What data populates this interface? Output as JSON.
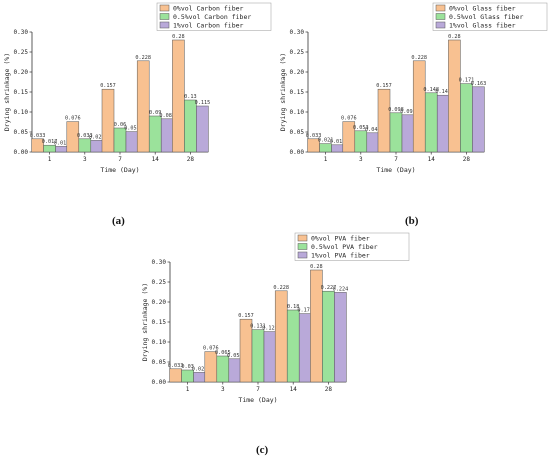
{
  "captions": [
    "(a)",
    "(b)",
    "(c)"
  ],
  "colors": [
    "#f8c191",
    "#9be29b",
    "#b9a9d9"
  ],
  "chart_data": [
    {
      "type": "bar",
      "categories": [
        "1",
        "3",
        "7",
        "14",
        "28"
      ],
      "series": [
        {
          "name": "0%vol Carbon fiber",
          "values": [
            0.033,
            0.076,
            0.157,
            0.228,
            0.28
          ],
          "labels": [
            "0.033",
            "0.076",
            "0.157",
            "0.228",
            "0.28"
          ]
        },
        {
          "name": "0.5%vol Carbon fiber",
          "values": [
            0.017,
            0.033,
            0.06,
            0.09,
            0.13
          ],
          "labels": [
            "0.017",
            "0.033",
            "0.06",
            "0.09",
            "0.13"
          ]
        },
        {
          "name": "1%vol Carbon fiber",
          "values": [
            0.014,
            0.029,
            0.051,
            0.083,
            0.115
          ],
          "labels": [
            "0.014",
            "0.029",
            "0.051",
            "0.083",
            "0.115"
          ]
        }
      ],
      "xlabel": "Time (Day)",
      "ylabel": "Drying shrinkage (%)",
      "ylim": [
        0,
        0.3
      ],
      "yticks": [
        "0.00",
        "0.05",
        "0.10",
        "0.15",
        "0.20",
        "0.25",
        "0.30"
      ],
      "legend": "top-right",
      "grid": false
    },
    {
      "type": "bar",
      "categories": [
        "1",
        "3",
        "7",
        "14",
        "28"
      ],
      "series": [
        {
          "name": "0%vol Glass fiber",
          "values": [
            0.033,
            0.076,
            0.157,
            0.228,
            0.28
          ],
          "labels": [
            "0.033",
            "0.076",
            "0.157",
            "0.228",
            "0.28"
          ]
        },
        {
          "name": "0.5%vol Glass fiber",
          "values": [
            0.021,
            0.053,
            0.098,
            0.148,
            0.171
          ],
          "labels": [
            "0.021",
            "0.053",
            "0.098",
            "0.148",
            "0.171"
          ]
        },
        {
          "name": "1%vol Glass fiber",
          "values": [
            0.018,
            0.048,
            0.093,
            0.142,
            0.163
          ],
          "labels": [
            "0.018",
            "0.048",
            "0.093",
            "0.142",
            "0.163"
          ]
        }
      ],
      "xlabel": "Time (Day)",
      "ylabel": "Drying shrinkage (%)",
      "ylim": [
        0,
        0.3
      ],
      "yticks": [
        "0.00",
        "0.05",
        "0.10",
        "0.15",
        "0.20",
        "0.25",
        "0.30"
      ],
      "legend": "top-right",
      "grid": false
    },
    {
      "type": "bar",
      "categories": [
        "1",
        "3",
        "7",
        "14",
        "28"
      ],
      "series": [
        {
          "name": "0%vol PVA fiber",
          "values": [
            0.033,
            0.076,
            0.157,
            0.228,
            0.28
          ],
          "labels": [
            "0.033",
            "0.076",
            "0.157",
            "0.228",
            "0.28"
          ]
        },
        {
          "name": "0.5%vol PVA fiber",
          "values": [
            0.03,
            0.065,
            0.131,
            0.18,
            0.227
          ],
          "labels": [
            "0.03",
            "0.065",
            "0.131",
            "0.18",
            "0.227"
          ]
        },
        {
          "name": "1%vol PVA fiber",
          "values": [
            0.024,
            0.058,
            0.126,
            0.171,
            0.224
          ],
          "labels": [
            "0.024",
            "0.058",
            "0.126",
            "0.171",
            "0.224"
          ]
        }
      ],
      "xlabel": "Time (Day)",
      "ylabel": "Drying shrinkage (%)",
      "ylim": [
        0,
        0.3
      ],
      "yticks": [
        "0.00",
        "0.05",
        "0.10",
        "0.15",
        "0.20",
        "0.25",
        "0.30"
      ],
      "legend": "top-right",
      "grid": false
    }
  ]
}
